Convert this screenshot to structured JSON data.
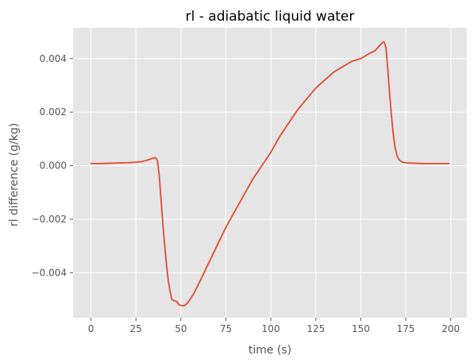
{
  "chart_data": {
    "type": "line",
    "title": "rl - adiabatic liquid water",
    "xlabel": "time (s)",
    "ylabel": "rl difference (g/kg)",
    "xlim": [
      -9.95,
      208.95
    ],
    "ylim": [
      -0.00568,
      0.00515
    ],
    "xticks": [
      0,
      25,
      50,
      75,
      100,
      125,
      150,
      175,
      200
    ],
    "xtick_labels": [
      "0",
      "25",
      "50",
      "75",
      "100",
      "125",
      "150",
      "175",
      "200"
    ],
    "yticks": [
      -0.004,
      -0.002,
      0.0,
      0.002,
      0.004
    ],
    "ytick_labels": [
      "−0.004",
      "−0.002",
      "0.000",
      "0.002",
      "0.004"
    ],
    "grid": true,
    "series": [
      {
        "color": "#E24A33",
        "x": [
          0,
          5,
          10,
          15,
          20,
          25,
          28,
          30,
          32,
          34,
          35,
          36,
          37,
          38,
          39,
          40,
          41,
          42,
          43,
          44,
          45,
          46,
          47,
          48,
          49,
          50,
          51,
          52,
          53,
          54,
          55,
          57,
          60,
          65,
          70,
          75,
          80,
          85,
          90,
          95,
          100,
          105,
          110,
          115,
          120,
          125,
          130,
          135,
          140,
          145,
          150,
          155,
          158,
          160,
          162,
          163,
          164,
          165,
          166,
          167,
          168,
          169,
          170,
          171,
          172,
          173,
          174,
          175,
          177,
          180,
          185,
          190,
          195,
          199
        ],
        "y": [
          8e-05,
          8e-05,
          9e-05,
          0.0001,
          0.00011,
          0.00013,
          0.00015,
          0.00018,
          0.00022,
          0.00027,
          0.00029,
          0.0003,
          0.00018,
          -0.0004,
          -0.0013,
          -0.0022,
          -0.003,
          -0.0037,
          -0.0043,
          -0.0047,
          -0.005,
          -0.00505,
          -0.00505,
          -0.0051,
          -0.0052,
          -0.00522,
          -0.00523,
          -0.00522,
          -0.00517,
          -0.0051,
          -0.005,
          -0.0048,
          -0.0044,
          -0.0037,
          -0.003,
          -0.0023,
          -0.0017,
          -0.0011,
          -0.0005,
          0.0,
          0.0005,
          0.0011,
          0.0016,
          0.0021,
          0.0025,
          0.0029,
          0.0032,
          0.0035,
          0.0037,
          0.0039,
          0.004,
          0.0042,
          0.0043,
          0.00445,
          0.0046,
          0.00462,
          0.0044,
          0.0036,
          0.0027,
          0.0019,
          0.0012,
          0.0007,
          0.0004,
          0.00025,
          0.00018,
          0.00014,
          0.00012,
          0.00011,
          0.0001,
          9e-05,
          8e-05,
          8e-05,
          8e-05,
          8e-05
        ]
      }
    ]
  }
}
